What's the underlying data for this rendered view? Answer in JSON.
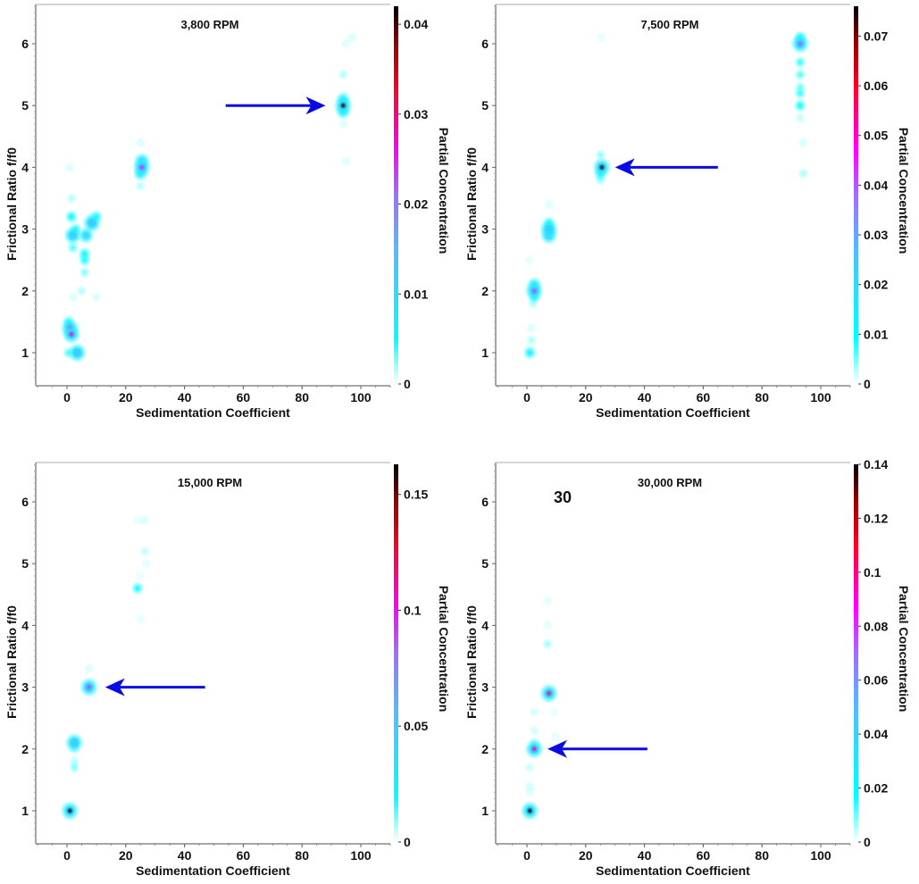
{
  "chart_data": [
    {
      "type": "heatmap",
      "title": "3,800 RPM",
      "xlabel": "Sedimentation Coefficient",
      "ylabel": "Frictional Ratio f/f0",
      "colorbar_label": "Partial Concentration",
      "xlim": [
        -10,
        110
      ],
      "ylim": [
        0.5,
        6.6
      ],
      "xticks": [
        0,
        20,
        40,
        60,
        80,
        100
      ],
      "yticks": [
        1,
        2,
        3,
        4,
        5,
        6
      ],
      "cbar_range": [
        0,
        0.042
      ],
      "cbar_ticks": [
        "0",
        "0.01",
        "0.02",
        "0.03",
        "0.04"
      ],
      "cbar_tick_values": [
        0,
        0.01,
        0.02,
        0.03,
        0.04
      ],
      "annotation": "",
      "arrow": {
        "from": [
          54,
          5.0
        ],
        "to": [
          88,
          5.0
        ]
      },
      "points": [
        {
          "s": 94,
          "f": 5.0,
          "c": 0.041
        },
        {
          "s": 94,
          "f": 5.1,
          "c": 0.008
        },
        {
          "s": 94,
          "f": 4.9,
          "c": 0.008
        },
        {
          "s": 94,
          "f": 5.5,
          "c": 0.002
        },
        {
          "s": 95,
          "f": 6.0,
          "c": 0.001
        },
        {
          "s": 97,
          "f": 6.1,
          "c": 0.001
        },
        {
          "s": 94,
          "f": 4.7,
          "c": 0.001
        },
        {
          "s": 95,
          "f": 4.1,
          "c": 0.001
        },
        {
          "s": 25.5,
          "f": 4.0,
          "c": 0.025
        },
        {
          "s": 25.5,
          "f": 4.1,
          "c": 0.01
        },
        {
          "s": 25,
          "f": 3.9,
          "c": 0.008
        },
        {
          "s": 25,
          "f": 3.7,
          "c": 0.002
        },
        {
          "s": 25,
          "f": 4.4,
          "c": 0.001
        },
        {
          "s": 8.5,
          "f": 3.1,
          "c": 0.015
        },
        {
          "s": 10,
          "f": 3.2,
          "c": 0.006
        },
        {
          "s": 6.5,
          "f": 2.9,
          "c": 0.01
        },
        {
          "s": 2,
          "f": 2.9,
          "c": 0.012
        },
        {
          "s": 1.5,
          "f": 3.2,
          "c": 0.006
        },
        {
          "s": 3,
          "f": 3.0,
          "c": 0.005
        },
        {
          "s": 6,
          "f": 2.6,
          "c": 0.006
        },
        {
          "s": 6,
          "f": 2.5,
          "c": 0.005
        },
        {
          "s": 6,
          "f": 2.3,
          "c": 0.003
        },
        {
          "s": 2,
          "f": 2.7,
          "c": 0.004
        },
        {
          "s": 1.5,
          "f": 3.5,
          "c": 0.002
        },
        {
          "s": 1,
          "f": 4.0,
          "c": 0.001
        },
        {
          "s": 1,
          "f": 1.4,
          "c": 0.025
        },
        {
          "s": 1.5,
          "f": 1.3,
          "c": 0.028
        },
        {
          "s": 0.5,
          "f": 1.5,
          "c": 0.005
        },
        {
          "s": 3.5,
          "f": 1.0,
          "c": 0.014
        },
        {
          "s": 0.5,
          "f": 1.0,
          "c": 0.004
        },
        {
          "s": 5,
          "f": 2.0,
          "c": 0.002
        },
        {
          "s": 2,
          "f": 1.9,
          "c": 0.001
        },
        {
          "s": 10,
          "f": 1.9,
          "c": 0.001
        }
      ]
    },
    {
      "type": "heatmap",
      "title": "7,500 RPM",
      "xlabel": "Sedimentation Coefficient",
      "ylabel": "Frictional Ratio f/f0",
      "colorbar_label": "Partial Concentration",
      "xlim": [
        -10,
        110
      ],
      "ylim": [
        0.5,
        6.6
      ],
      "xticks": [
        0,
        20,
        40,
        60,
        80,
        100
      ],
      "yticks": [
        1,
        2,
        3,
        4,
        5,
        6
      ],
      "cbar_range": [
        0,
        0.076
      ],
      "cbar_ticks": [
        "0",
        "0.01",
        "0.02",
        "0.03",
        "0.04",
        "0.05",
        "0.06",
        "0.07"
      ],
      "cbar_tick_values": [
        0,
        0.01,
        0.02,
        0.03,
        0.04,
        0.05,
        0.06,
        0.07
      ],
      "annotation": "",
      "arrow": {
        "from": [
          65,
          4.0
        ],
        "to": [
          30,
          4.0
        ]
      },
      "points": [
        {
          "s": 25.5,
          "f": 4.0,
          "c": 0.074
        },
        {
          "s": 25,
          "f": 3.9,
          "c": 0.012
        },
        {
          "s": 25,
          "f": 4.2,
          "c": 0.005
        },
        {
          "s": 25,
          "f": 3.8,
          "c": 0.005
        },
        {
          "s": 93,
          "f": 6.0,
          "c": 0.04
        },
        {
          "s": 93,
          "f": 6.1,
          "c": 0.012
        },
        {
          "s": 93,
          "f": 5.7,
          "c": 0.008
        },
        {
          "s": 93,
          "f": 5.5,
          "c": 0.007
        },
        {
          "s": 93,
          "f": 5.3,
          "c": 0.006
        },
        {
          "s": 93,
          "f": 5.2,
          "c": 0.008
        },
        {
          "s": 93,
          "f": 5.0,
          "c": 0.01
        },
        {
          "s": 93,
          "f": 4.8,
          "c": 0.003
        },
        {
          "s": 94,
          "f": 4.4,
          "c": 0.002
        },
        {
          "s": 94,
          "f": 3.9,
          "c": 0.004
        },
        {
          "s": 7.5,
          "f": 3.0,
          "c": 0.025
        },
        {
          "s": 7.5,
          "f": 2.9,
          "c": 0.02
        },
        {
          "s": 7.5,
          "f": 3.1,
          "c": 0.01
        },
        {
          "s": 7.5,
          "f": 3.4,
          "c": 0.002
        },
        {
          "s": 2.5,
          "f": 2.0,
          "c": 0.042
        },
        {
          "s": 2.5,
          "f": 2.1,
          "c": 0.015
        },
        {
          "s": 2.5,
          "f": 1.9,
          "c": 0.01
        },
        {
          "s": 2,
          "f": 1.8,
          "c": 0.004
        },
        {
          "s": 1.5,
          "f": 1.4,
          "c": 0.002
        },
        {
          "s": 1.5,
          "f": 1.2,
          "c": 0.004
        },
        {
          "s": 1,
          "f": 1.0,
          "c": 0.012
        },
        {
          "s": 1,
          "f": 2.5,
          "c": 0.001
        },
        {
          "s": 25,
          "f": 6.1,
          "c": 0.001
        }
      ]
    },
    {
      "type": "heatmap",
      "title": "15,000 RPM",
      "xlabel": "Sedimentation Coefficient",
      "ylabel": "Frictional Ratio f/f0",
      "colorbar_label": "Partial Concentration",
      "xlim": [
        -10,
        110
      ],
      "ylim": [
        0.5,
        6.6
      ],
      "xticks": [
        0,
        20,
        40,
        60,
        80,
        100
      ],
      "yticks": [
        1,
        2,
        3,
        4,
        5,
        6
      ],
      "cbar_range": [
        0,
        0.163
      ],
      "cbar_ticks": [
        "0",
        "0.05",
        "0.1",
        "0.15"
      ],
      "cbar_tick_values": [
        0,
        0.05,
        0.1,
        0.15
      ],
      "annotation": "",
      "arrow": {
        "from": [
          47,
          3.0
        ],
        "to": [
          13,
          3.0
        ]
      },
      "points": [
        {
          "s": 1,
          "f": 1.0,
          "c": 0.16
        },
        {
          "s": 7.5,
          "f": 3.0,
          "c": 0.09
        },
        {
          "s": 7.5,
          "f": 3.3,
          "c": 0.004
        },
        {
          "s": 2.5,
          "f": 2.1,
          "c": 0.05
        },
        {
          "s": 2.5,
          "f": 2.0,
          "c": 0.01
        },
        {
          "s": 2.5,
          "f": 1.8,
          "c": 0.008
        },
        {
          "s": 2.5,
          "f": 1.7,
          "c": 0.012
        },
        {
          "s": 24,
          "f": 4.6,
          "c": 0.02
        },
        {
          "s": 26.5,
          "f": 5.2,
          "c": 0.006
        },
        {
          "s": 26.5,
          "f": 5.7,
          "c": 0.004
        },
        {
          "s": 24,
          "f": 5.7,
          "c": 0.002
        },
        {
          "s": 27,
          "f": 5.0,
          "c": 0.003
        },
        {
          "s": 25,
          "f": 4.1,
          "c": 0.003
        },
        {
          "s": 25,
          "f": 4.8,
          "c": 0.002
        }
      ]
    },
    {
      "type": "heatmap",
      "title": "30,000 RPM",
      "xlabel": "Sedimentation Coefficient",
      "ylabel": "Frictional Ratio f/f0",
      "colorbar_label": "Partial Concentration",
      "xlim": [
        -10,
        110
      ],
      "ylim": [
        0.5,
        6.6
      ],
      "xticks": [
        0,
        20,
        40,
        60,
        80,
        100
      ],
      "yticks": [
        1,
        2,
        3,
        4,
        5,
        6
      ],
      "cbar_range": [
        0,
        0.14
      ],
      "cbar_ticks": [
        "0",
        "0.02",
        "0.04",
        "0.06",
        "0.08",
        "0.1",
        "0.12",
        "0.14"
      ],
      "cbar_tick_values": [
        0,
        0.02,
        0.04,
        0.06,
        0.08,
        0.1,
        0.12,
        0.14
      ],
      "annotation": "30",
      "arrow": {
        "from": [
          41,
          2.0
        ],
        "to": [
          7,
          2.0
        ]
      },
      "points": [
        {
          "s": 1,
          "f": 1.0,
          "c": 0.14
        },
        {
          "s": 2.5,
          "f": 2.0,
          "c": 0.095
        },
        {
          "s": 7.5,
          "f": 2.9,
          "c": 0.1
        },
        {
          "s": 7,
          "f": 3.7,
          "c": 0.008
        },
        {
          "s": 7,
          "f": 4.0,
          "c": 0.002
        },
        {
          "s": 7,
          "f": 4.4,
          "c": 0.002
        },
        {
          "s": 2.5,
          "f": 2.6,
          "c": 0.004
        },
        {
          "s": 2.5,
          "f": 2.3,
          "c": 0.004
        },
        {
          "s": 2.5,
          "f": 2.1,
          "c": 0.008
        },
        {
          "s": 1,
          "f": 1.7,
          "c": 0.005
        },
        {
          "s": 1,
          "f": 1.4,
          "c": 0.004
        },
        {
          "s": 1,
          "f": 1.3,
          "c": 0.003
        },
        {
          "s": 9,
          "f": 2.6,
          "c": 0.002
        },
        {
          "s": 9.5,
          "f": 2.2,
          "c": 0.002
        }
      ]
    }
  ]
}
